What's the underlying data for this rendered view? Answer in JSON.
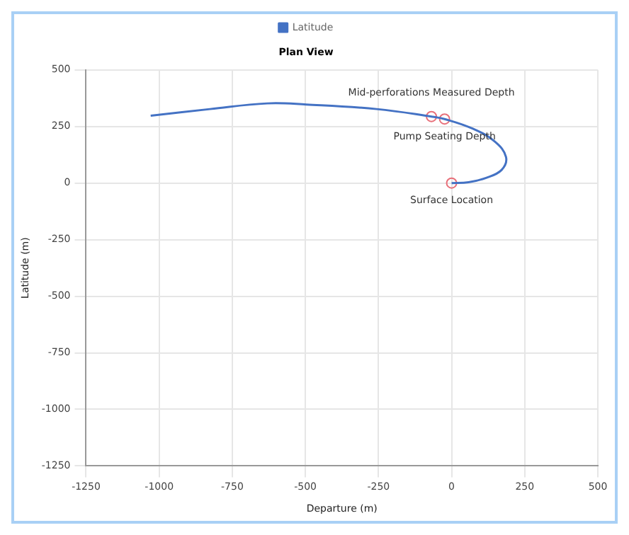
{
  "chart_data": {
    "type": "line",
    "title": "Plan View",
    "xlabel": "Departure (m)",
    "ylabel": "Latitude (m)",
    "series": [
      {
        "name": "Latitude",
        "type": "line",
        "color": "#4472c4",
        "marker": "none",
        "x": [
          -1029,
          -826,
          -631,
          -496,
          -256,
          -69,
          -24,
          73,
          148,
          186,
          171,
          118,
          58,
          0
        ],
        "values": [
          298,
          327,
          352,
          347,
          327,
          294,
          283,
          240,
          183,
          115,
          58,
          23,
          4,
          0
        ]
      },
      {
        "type": "scatter",
        "color": "#e8707a",
        "marker": "circle",
        "x": [
          -69,
          -24,
          0
        ],
        "values": [
          294,
          283,
          0
        ]
      }
    ],
    "annotations": [
      {
        "text": "Mid-perforations Measured Depth",
        "x": -69,
        "y": 294
      },
      {
        "text": "Pump Seating Depth",
        "x": -24,
        "y": 283
      },
      {
        "text": "Surface Location",
        "x": 0,
        "y": 0
      }
    ],
    "xlim": [
      -1250,
      500
    ],
    "xticks": [
      -1250,
      -1000,
      -750,
      -500,
      -250,
      0,
      250,
      500
    ],
    "ylim": [
      -1250,
      500
    ],
    "yticks": [
      -1250,
      -1000,
      -750,
      -500,
      -250,
      0,
      250,
      500
    ],
    "grid": true,
    "legend": "top"
  }
}
